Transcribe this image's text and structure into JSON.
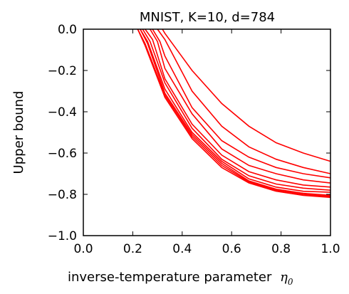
{
  "chart_data": {
    "type": "line",
    "title": "MNIST, K=10, d=784",
    "xlabel": "inverse-temperature parameter",
    "xlabel_symbol": "η",
    "xlabel_subscript": "0",
    "ylabel": "Upper bound",
    "xlim": [
      0.0,
      1.0
    ],
    "ylim": [
      -1.0,
      0.0
    ],
    "xticks": [
      "0.0",
      "0.2",
      "0.4",
      "0.6",
      "0.8",
      "1.0"
    ],
    "yticks": [
      "0.0",
      "−0.2",
      "−0.4",
      "−0.6",
      "−0.8",
      "−1.0"
    ],
    "line_color": "#ff0000",
    "grid": false,
    "series": [
      {
        "x": [
          0.22,
          0.25,
          0.33,
          0.44,
          0.56,
          0.67,
          0.78,
          0.89,
          1.0
        ],
        "y": [
          0.0,
          -0.08,
          -0.33,
          -0.53,
          -0.67,
          -0.745,
          -0.785,
          -0.805,
          -0.815
        ]
      },
      {
        "x": [
          0.22,
          0.25,
          0.33,
          0.44,
          0.56,
          0.67,
          0.78,
          0.89,
          1.0
        ],
        "y": [
          0.0,
          -0.07,
          -0.32,
          -0.52,
          -0.66,
          -0.74,
          -0.78,
          -0.8,
          -0.81
        ]
      },
      {
        "x": [
          0.23,
          0.26,
          0.33,
          0.44,
          0.56,
          0.67,
          0.78,
          0.89,
          1.0
        ],
        "y": [
          0.0,
          -0.07,
          -0.31,
          -0.51,
          -0.65,
          -0.735,
          -0.775,
          -0.795,
          -0.805
        ]
      },
      {
        "x": [
          0.23,
          0.26,
          0.33,
          0.44,
          0.56,
          0.67,
          0.78,
          0.89,
          1.0
        ],
        "y": [
          0.0,
          -0.06,
          -0.29,
          -0.5,
          -0.64,
          -0.725,
          -0.765,
          -0.785,
          -0.79
        ]
      },
      {
        "x": [
          0.24,
          0.27,
          0.33,
          0.44,
          0.56,
          0.67,
          0.78,
          0.89,
          1.0
        ],
        "y": [
          0.0,
          -0.06,
          -0.26,
          -0.48,
          -0.63,
          -0.71,
          -0.75,
          -0.77,
          -0.78
        ]
      },
      {
        "x": [
          0.25,
          0.28,
          0.33,
          0.44,
          0.56,
          0.67,
          0.78,
          0.89,
          1.0
        ],
        "y": [
          0.0,
          -0.05,
          -0.24,
          -0.46,
          -0.61,
          -0.69,
          -0.73,
          -0.755,
          -0.765
        ]
      },
      {
        "x": [
          0.27,
          0.3,
          0.33,
          0.44,
          0.56,
          0.67,
          0.78,
          0.89,
          1.0
        ],
        "y": [
          0.0,
          -0.06,
          -0.19,
          -0.41,
          -0.58,
          -0.66,
          -0.7,
          -0.73,
          -0.745
        ]
      },
      {
        "x": [
          0.28,
          0.31,
          0.33,
          0.44,
          0.56,
          0.67,
          0.78,
          0.89,
          1.0
        ],
        "y": [
          0.0,
          -0.06,
          -0.13,
          -0.38,
          -0.54,
          -0.62,
          -0.67,
          -0.7,
          -0.72
        ]
      },
      {
        "x": [
          0.3,
          0.33,
          0.44,
          0.56,
          0.67,
          0.78,
          0.89,
          1.0
        ],
        "y": [
          0.0,
          -0.05,
          -0.3,
          -0.47,
          -0.57,
          -0.63,
          -0.67,
          -0.7
        ]
      },
      {
        "x": [
          0.32,
          0.33,
          0.44,
          0.56,
          0.67,
          0.78,
          0.89,
          1.0
        ],
        "y": [
          0.0,
          -0.02,
          -0.2,
          -0.36,
          -0.47,
          -0.55,
          -0.6,
          -0.64
        ]
      }
    ]
  }
}
